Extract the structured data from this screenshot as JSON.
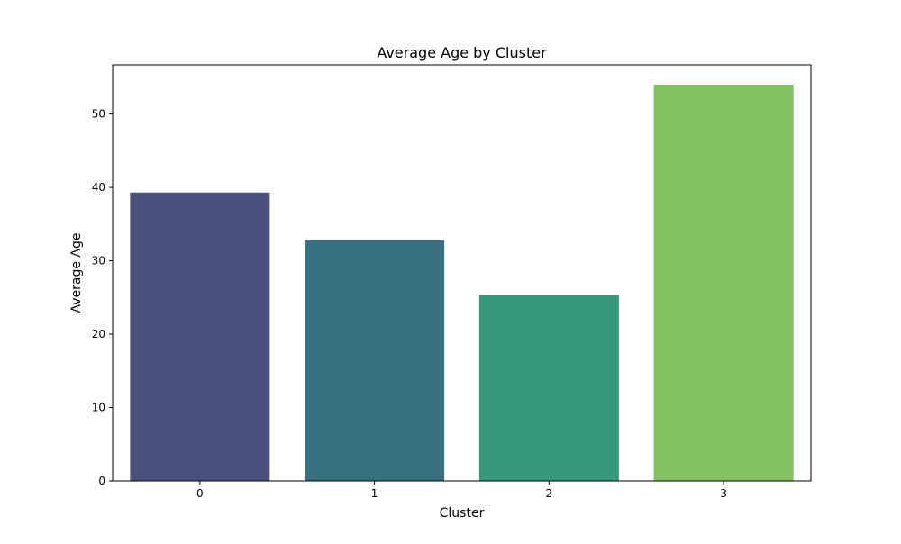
{
  "chart_data": {
    "type": "bar",
    "title": "Average Age by Cluster",
    "xlabel": "Cluster",
    "ylabel": "Average Age",
    "categories": [
      "0",
      "1",
      "2",
      "3"
    ],
    "values": [
      39.3,
      32.8,
      25.3,
      54.0
    ],
    "colors": [
      "#4a4f7e",
      "#37717f",
      "#36997c",
      "#82c262"
    ],
    "ylim": [
      0,
      56.7
    ],
    "yticks": [
      0,
      10,
      20,
      30,
      40,
      50
    ],
    "grid": false,
    "legend": "none"
  }
}
